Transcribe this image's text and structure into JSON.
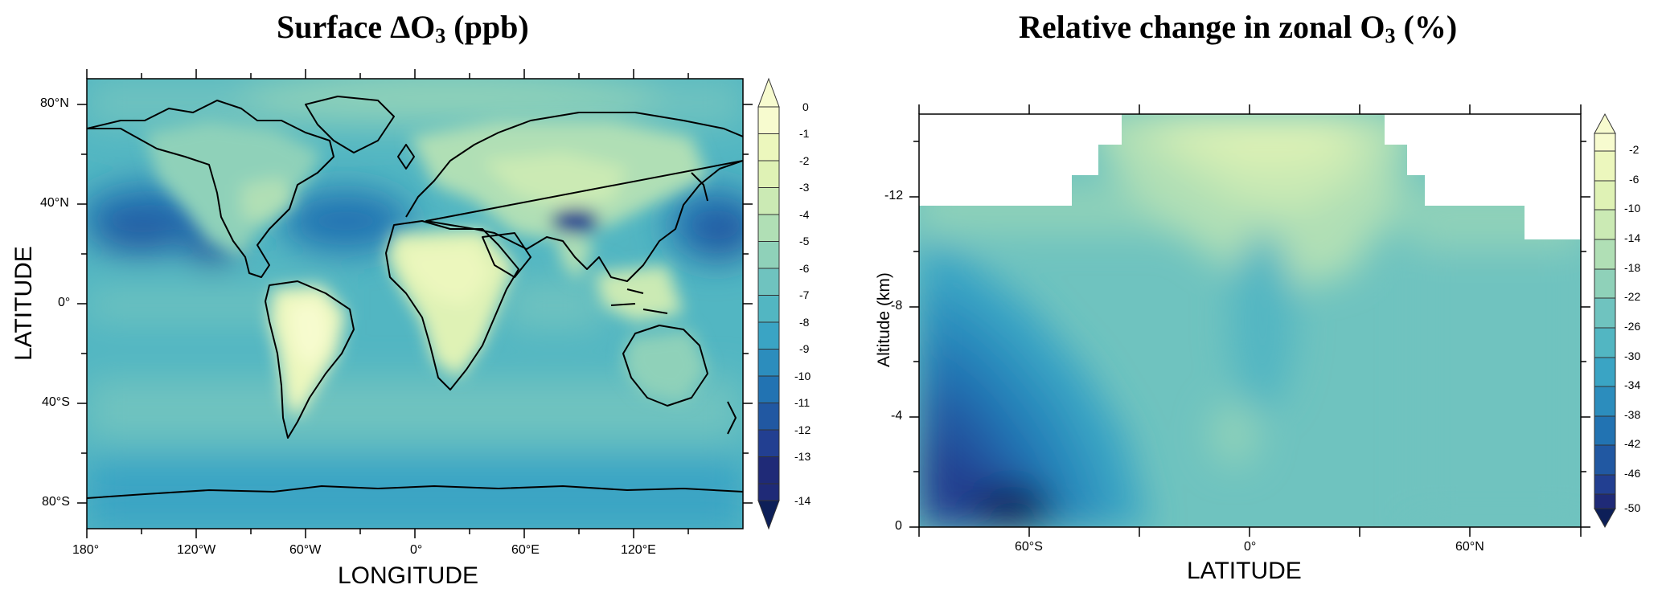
{
  "left_panel": {
    "title_main": "Surface ΔO",
    "title_sub": "3",
    "title_unit": " (ppb)",
    "xlabel": "LONGITUDE",
    "ylabel": "LATITUDE",
    "x_ticks": [
      "180°",
      "120°W",
      "60°W",
      "0°",
      "60°E",
      "120°E"
    ],
    "y_ticks": [
      "80°N",
      "40°N",
      "0°",
      "40°S",
      "80°S"
    ],
    "colorbar_labels": [
      "0",
      "-1",
      "-2",
      "-3",
      "-4",
      "-5",
      "-6",
      "-7",
      "-8",
      "-9",
      "-10",
      "-11",
      "-12",
      "-13",
      "-14"
    ]
  },
  "right_panel": {
    "title_main": "Relative change in zonal O",
    "title_sub": "3",
    "title_unit": " (%)",
    "xlabel": "LATITUDE",
    "ylabel": "Altitude (km)",
    "x_ticks": [
      "60°S",
      "0°",
      "60°N"
    ],
    "y_ticks": [
      "-12",
      "-8",
      "-4",
      "0"
    ],
    "colorbar_labels": [
      "-2",
      "-6",
      "-10",
      "-14",
      "-18",
      "-22",
      "-26",
      "-30",
      "-34",
      "-38",
      "-42",
      "-46",
      "-50"
    ]
  },
  "colors": {
    "scale": [
      "#f7fbcf",
      "#ecf7bd",
      "#dff2b5",
      "#cbeab4",
      "#b0dfb5",
      "#8fd1b9",
      "#6fc3bf",
      "#52b6c2",
      "#3aa4c4",
      "#2c8dbd",
      "#2273b2",
      "#2158a2",
      "#223f91",
      "#1f2a77",
      "#0d1f58"
    ]
  }
}
